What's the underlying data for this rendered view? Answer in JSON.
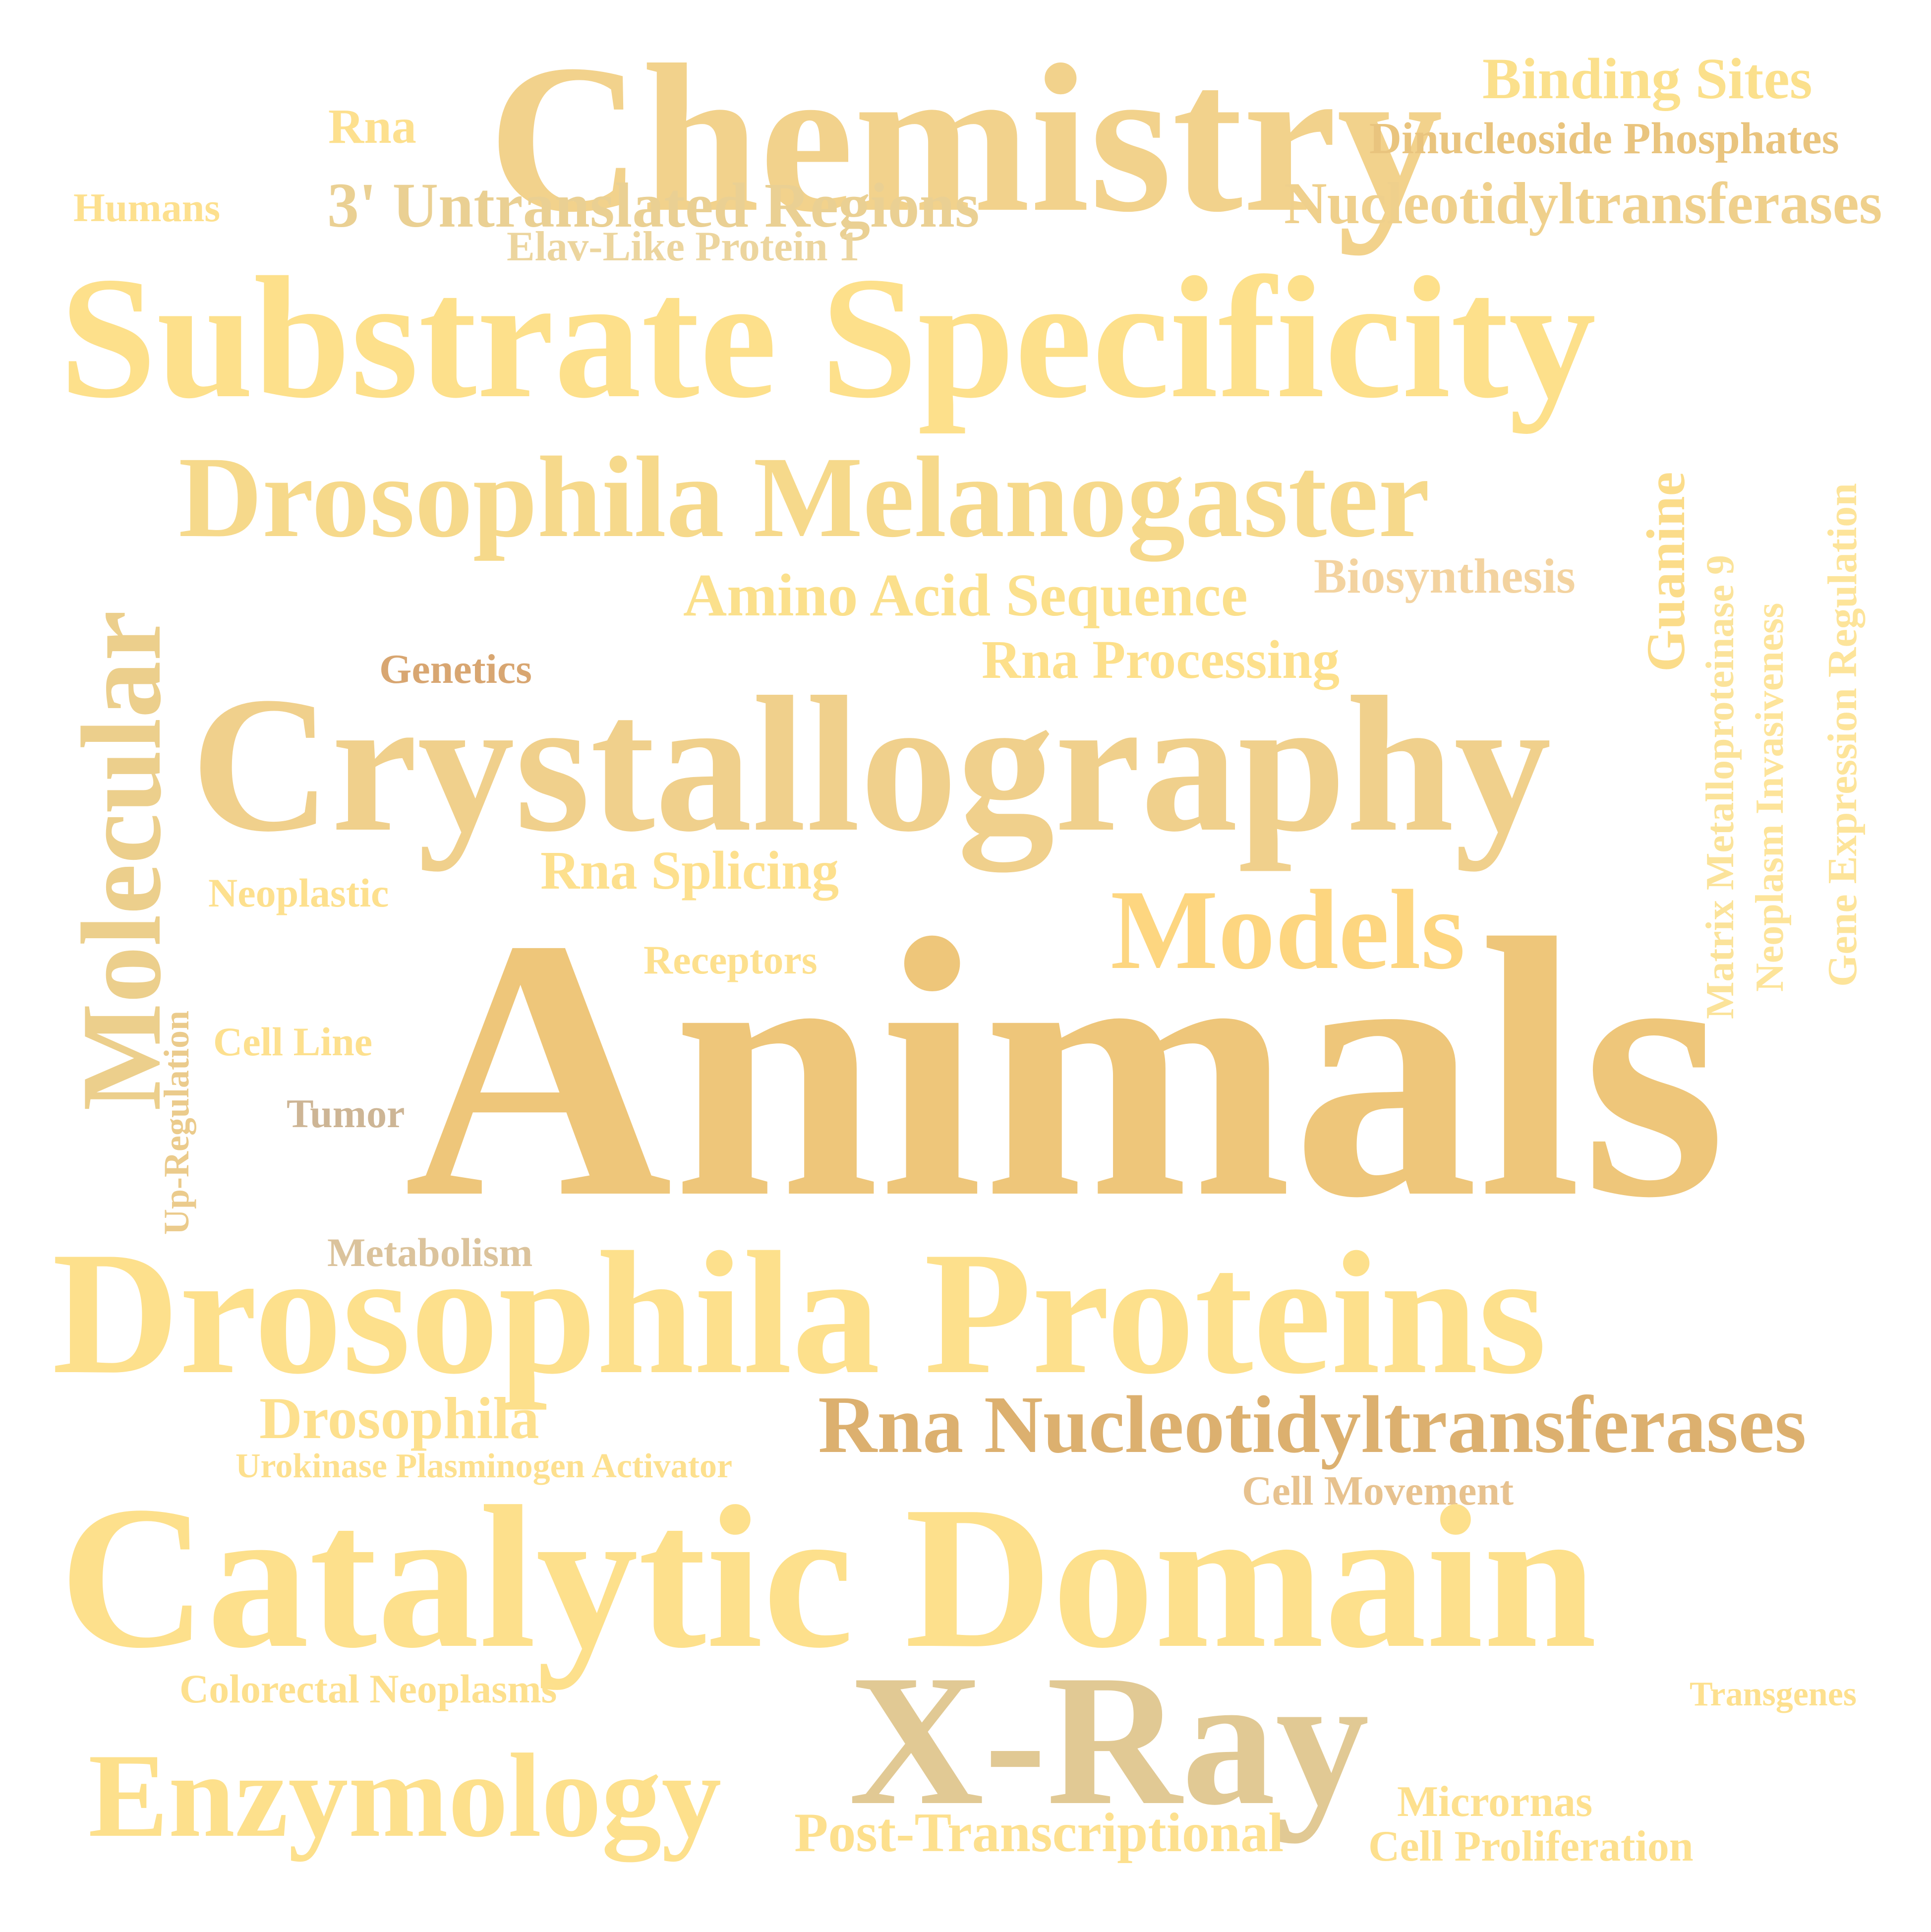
{
  "words": [
    {
      "text": "Chemistry",
      "color": "#f2d28c"
    },
    {
      "text": "Binding Sites",
      "color": "#fbe08c"
    },
    {
      "text": "Rna",
      "color": "#fde08e"
    },
    {
      "text": "Dinucleoside Phosphates",
      "color": "#e9c47e"
    },
    {
      "text": "Humans",
      "color": "#fde08e"
    },
    {
      "text": "3' Untranslated Regions",
      "color": "#ead093"
    },
    {
      "text": "Nucleotidyltransferases",
      "color": "#efd08c"
    },
    {
      "text": "Elav-Like Protein 1",
      "color": "#ecd59e"
    },
    {
      "text": "Substrate Specificity",
      "color": "#fde08b"
    },
    {
      "text": "Drosophila Melanogaster",
      "color": "#f6d98b"
    },
    {
      "text": "Guanine",
      "color": "#fbdc8a"
    },
    {
      "text": "Matrix Metalloproteinase 9",
      "color": "#fbe39a"
    },
    {
      "text": "Neoplasm Invasiveness",
      "color": "#fde49a"
    },
    {
      "text": "Gene Expression Regulation",
      "color": "#fde49a"
    },
    {
      "text": "Molecular",
      "color": "#eccf8c"
    },
    {
      "text": "Amino Acid Sequence",
      "color": "#fbe08c"
    },
    {
      "text": "Biosynthesis",
      "color": "#f3d3a0"
    },
    {
      "text": "Genetics",
      "color": "#d8a671"
    },
    {
      "text": "Rna Processing",
      "color": "#fde08c"
    },
    {
      "text": "Crystallography",
      "color": "#f0d08c"
    },
    {
      "text": "Neoplastic",
      "color": "#fde08e"
    },
    {
      "text": "Rna Splicing",
      "color": "#fde08e"
    },
    {
      "text": "Models",
      "color": "#fdd680"
    },
    {
      "text": "Receptors",
      "color": "#fde08e"
    },
    {
      "text": "Up-Regulation",
      "color": "#ebcb8c"
    },
    {
      "text": "Cell Line",
      "color": "#fde08e"
    },
    {
      "text": "Animals",
      "color": "#eec67a"
    },
    {
      "text": "Tumor",
      "color": "#cdb595"
    },
    {
      "text": "Metabolism",
      "color": "#dbc39c"
    },
    {
      "text": "Drosophila Proteins",
      "color": "#fde08c"
    },
    {
      "text": "Drosophila",
      "color": "#fde08e"
    },
    {
      "text": "Rna Nucleotidyltransferases",
      "color": "#dcb06f"
    },
    {
      "text": "Urokinase Plasminogen Activator",
      "color": "#fde08e"
    },
    {
      "text": "Cell Movement",
      "color": "#e7c28f"
    },
    {
      "text": "Catalytic Domain",
      "color": "#fde08c"
    },
    {
      "text": "Colorectal Neoplasms",
      "color": "#fde08e"
    },
    {
      "text": "Transgenes",
      "color": "#fde08e"
    },
    {
      "text": "X-Ray",
      "color": "#e1c994"
    },
    {
      "text": "Enzymology",
      "color": "#fde08c"
    },
    {
      "text": "Micrornas",
      "color": "#fde08e"
    },
    {
      "text": "Post-Transcriptional",
      "color": "#fde08e"
    },
    {
      "text": "Cell Proliferation",
      "color": "#fde08e"
    }
  ]
}
